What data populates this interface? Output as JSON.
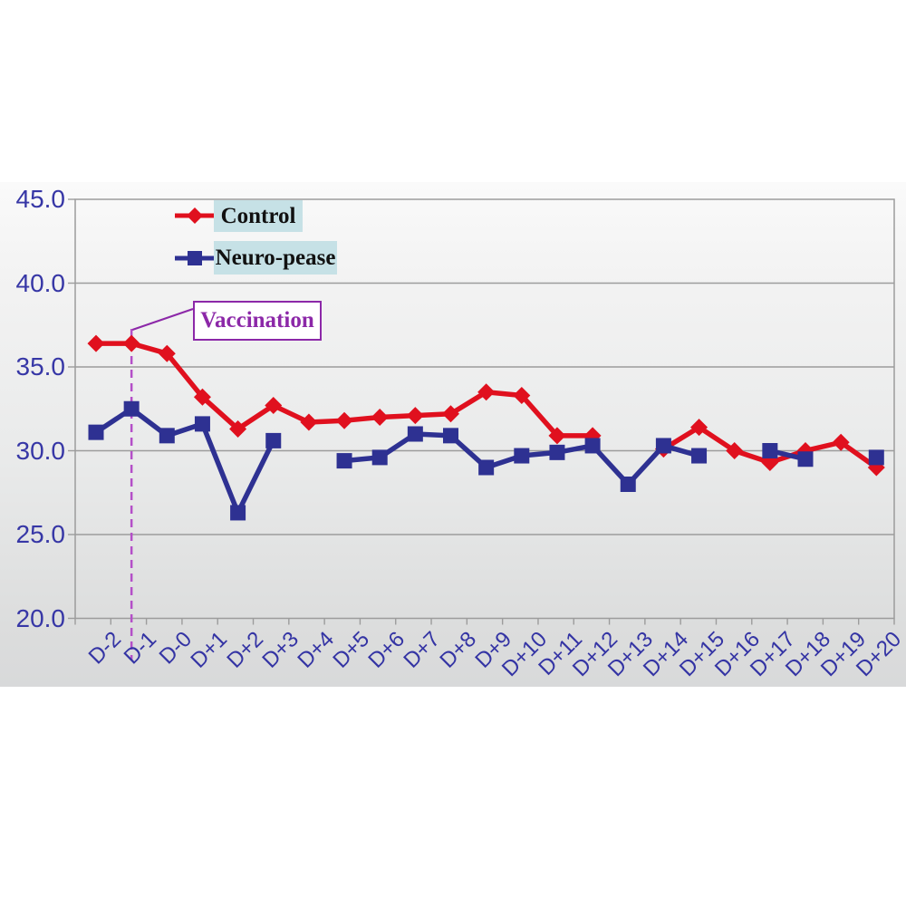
{
  "chart_data": {
    "type": "line",
    "title": "",
    "categories": [
      "D-2",
      "D-1",
      "D-0",
      "D+1",
      "D+2",
      "D+3",
      "D+4",
      "D+5",
      "D+6",
      "D+7",
      "D+8",
      "D+9",
      "D+10",
      "D+11",
      "D+12",
      "D+13",
      "D+14",
      "D+15",
      "D+16",
      "D+17",
      "D+18",
      "D+19",
      "D+20"
    ],
    "series": [
      {
        "name": "Control",
        "marker": "diamond",
        "color": "#e0101e",
        "values": [
          36.4,
          36.4,
          35.8,
          33.2,
          31.3,
          32.7,
          31.7,
          31.8,
          32.0,
          32.1,
          32.2,
          33.5,
          33.3,
          30.9,
          30.9,
          null,
          30.1,
          31.4,
          30.0,
          29.3,
          30.0,
          30.5,
          29.0
        ]
      },
      {
        "name": "Neuro-pease",
        "marker": "square",
        "color": "#2e3192",
        "values": [
          31.1,
          32.5,
          30.9,
          31.6,
          26.3,
          30.6,
          null,
          29.4,
          29.6,
          31.0,
          30.9,
          29.0,
          29.7,
          29.9,
          30.3,
          28.0,
          30.3,
          29.7,
          null,
          30.0,
          29.5,
          null,
          29.6
        ]
      }
    ],
    "ylim": [
      20,
      45
    ],
    "yticks": [
      45,
      40,
      35,
      30,
      25,
      20
    ],
    "ytick_labels": [
      "45.0",
      "40.0",
      "35.0",
      "30.0",
      "25.0",
      "20.0"
    ],
    "xlabel": "",
    "ylabel": "",
    "grid": "horizontal",
    "legend_position": "inside-top-left",
    "annotation": {
      "text": "Vaccination",
      "at_category": "D-1",
      "line_style": "dashed-vertical"
    }
  },
  "legend": {
    "control_label": "Control",
    "neuro_label": "Neuro-pease"
  },
  "annotation_label": "Vaccination",
  "colors": {
    "control": "#e0101e",
    "neuro_pease": "#2e3192",
    "axis_text": "#3737a6",
    "annotation": "#8c28a8",
    "annotation_dash": "#b44fc8",
    "legend_bg": "#c6e1e6",
    "gridline": "#9c9c9c"
  }
}
